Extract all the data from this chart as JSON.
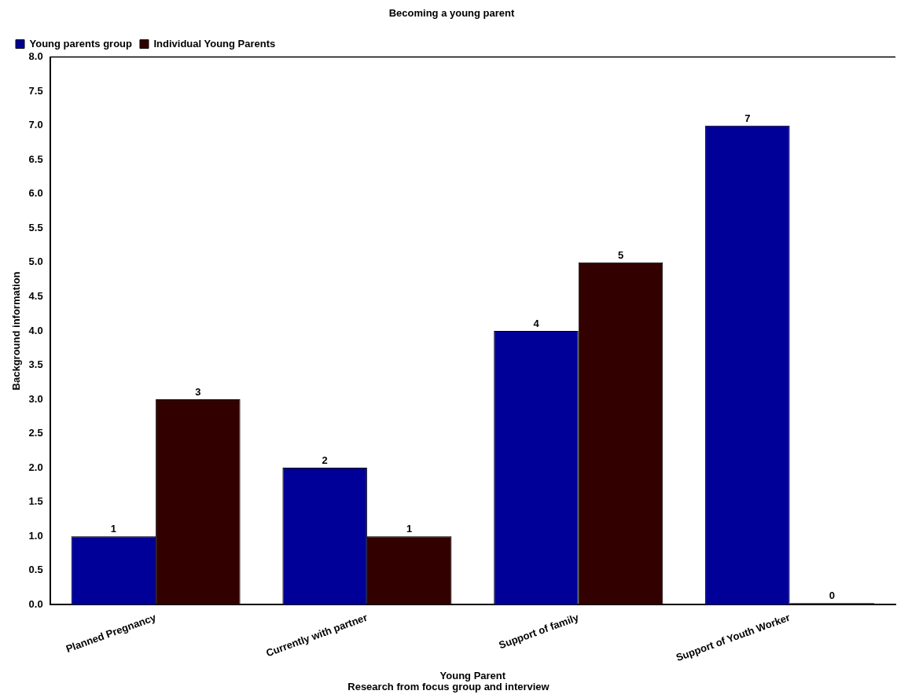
{
  "chart_data": {
    "type": "bar",
    "title": "Becoming a young parent",
    "xlabel": "Young Parent",
    "ylabel": "Background information",
    "annotations": [
      "Research from focus group and interview"
    ],
    "categories": [
      "Planned Pregnancy",
      "Currently with partner",
      "Support of family",
      "Support of Youth Worker"
    ],
    "series": [
      {
        "name": "Young parents group",
        "color": "#000099",
        "values": [
          1,
          2,
          4,
          7
        ]
      },
      {
        "name": "Individual Young Parents",
        "color": "#330000",
        "values": [
          3,
          1,
          5,
          0
        ]
      }
    ],
    "ylim": [
      0,
      8
    ],
    "yticks": [
      {
        "value": 0,
        "label": "0.0"
      },
      {
        "value": 0.5,
        "label": "0.5"
      },
      {
        "value": 1,
        "label": "1.0"
      },
      {
        "value": 1.5,
        "label": "1.5"
      },
      {
        "value": 2,
        "label": "2.0"
      },
      {
        "value": 2.5,
        "label": "2.5"
      },
      {
        "value": 3,
        "label": "3.0"
      },
      {
        "value": 3.5,
        "label": "3.5"
      },
      {
        "value": 4,
        "label": "4.0"
      },
      {
        "value": 4.5,
        "label": "4.5"
      },
      {
        "value": 5,
        "label": "5.0"
      },
      {
        "value": 5.5,
        "label": "5.5"
      },
      {
        "value": 6,
        "label": "6.0"
      },
      {
        "value": 6.5,
        "label": "6.5"
      },
      {
        "value": 7,
        "label": "7.0"
      },
      {
        "value": 7.5,
        "label": "7.5"
      },
      {
        "value": 8,
        "label": "8.0"
      }
    ],
    "grid": false,
    "legend": "top left",
    "data_labels": true
  }
}
